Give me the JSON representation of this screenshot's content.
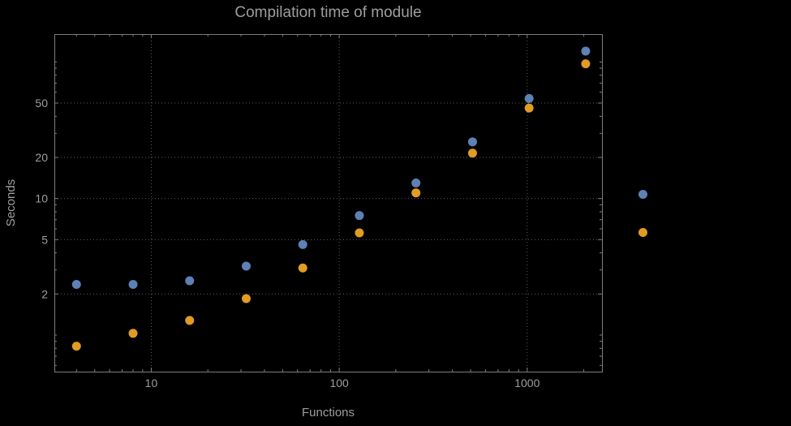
{
  "title": "Compilation time of module",
  "xlabel": "Functions",
  "ylabel": "Seconds",
  "colors": {
    "background": "#000000",
    "text": "#9e9e9e",
    "frame": "#7d7d7d",
    "grid": "#5c5c5c",
    "tick": "#7d7d7d",
    "series1": "#5e81b5",
    "series2": "#e19c24"
  },
  "chart_data": {
    "type": "scatter",
    "title": "Compilation time of module",
    "xlabel": "Functions",
    "ylabel": "Seconds",
    "x_scale": "log",
    "y_scale": "log",
    "grid": "dotted",
    "x": [
      4,
      8,
      16,
      32,
      64,
      128,
      256,
      512,
      1024,
      2048
    ],
    "series": [
      {
        "id": "series-1",
        "color": "#5e81b5",
        "values": [
          2.35,
          2.35,
          2.5,
          3.2,
          4.6,
          7.5,
          13,
          26,
          54,
          120
        ]
      },
      {
        "id": "series-2",
        "color": "#e19c24",
        "values": [
          0.83,
          1.03,
          1.28,
          1.85,
          3.1,
          5.6,
          11,
          21.5,
          46,
          97
        ]
      }
    ],
    "x_ticks": [
      10,
      100,
      1000
    ],
    "y_ticks": [
      2,
      5,
      10,
      20,
      50
    ],
    "x_range": [
      3.05,
      2500
    ],
    "y_range": [
      0.54,
      160
    ],
    "legend_position": "right"
  },
  "legend": {
    "markers": [
      {
        "color": "#5e81b5"
      },
      {
        "color": "#e19c24"
      }
    ]
  }
}
